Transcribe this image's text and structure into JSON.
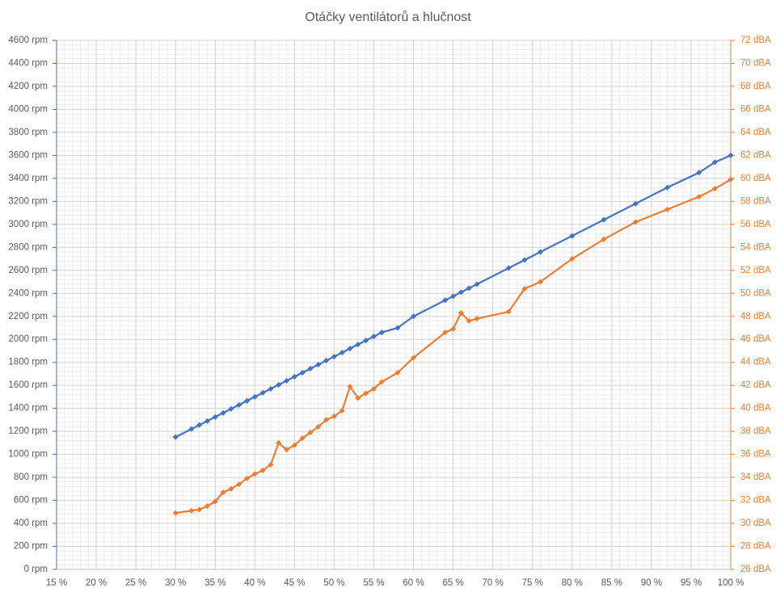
{
  "chart_data": {
    "type": "line",
    "title": "Otáčky ventilátorů a hlučnost",
    "x": [
      30,
      32,
      33,
      34,
      35,
      36,
      37,
      38,
      39,
      40,
      41,
      42,
      43,
      44,
      45,
      46,
      47,
      48,
      49,
      50,
      51,
      52,
      53,
      54,
      55,
      56,
      58,
      60,
      64,
      65,
      66,
      67,
      68,
      72,
      74,
      76,
      80,
      84,
      88,
      92,
      96,
      98,
      100
    ],
    "series": [
      {
        "color": "#4472c4",
        "values": [
          1150,
          1220,
          1255,
          1290,
          1325,
          1360,
          1395,
          1430,
          1465,
          1500,
          1535,
          1570,
          1605,
          1640,
          1675,
          1710,
          1745,
          1780,
          1815,
          1850,
          1885,
          1920,
          1955,
          1990,
          2025,
          2060,
          2100,
          2200,
          2340,
          2375,
          2410,
          2445,
          2480,
          2620,
          2690,
          2760,
          2900,
          3040,
          3180,
          3320,
          3450,
          3540,
          3600
        ]
      },
      {
        "color": "#ed7d31",
        "axis": "y2",
        "values": [
          30.9,
          31.1,
          31.2,
          31.5,
          31.9,
          32.7,
          33.0,
          33.4,
          33.9,
          34.3,
          34.6,
          35.1,
          37.0,
          36.4,
          36.8,
          37.4,
          37.9,
          38.4,
          39.0,
          39.3,
          39.8,
          41.9,
          40.9,
          41.3,
          41.7,
          42.3,
          43.1,
          44.4,
          46.6,
          46.9,
          48.3,
          47.6,
          47.8,
          48.4,
          50.4,
          51.0,
          53.0,
          54.7,
          56.2,
          57.3,
          58.4,
          59.1,
          59.9
        ]
      }
    ],
    "xlim": [
      15,
      100
    ],
    "xticks": [
      {
        "value": 15,
        "label": "15 %"
      },
      {
        "value": 20,
        "label": "20 %"
      },
      {
        "value": 25,
        "label": "25 %"
      },
      {
        "value": 30,
        "label": "30 %"
      },
      {
        "value": 35,
        "label": "35 %"
      },
      {
        "value": 40,
        "label": "40 %"
      },
      {
        "value": 45,
        "label": "45 %"
      },
      {
        "value": 50,
        "label": "50 %"
      },
      {
        "value": 55,
        "label": "55 %"
      },
      {
        "value": 60,
        "label": "60 %"
      },
      {
        "value": 65,
        "label": "65 %"
      },
      {
        "value": 70,
        "label": "70 %"
      },
      {
        "value": 75,
        "label": "75 %"
      },
      {
        "value": 80,
        "label": "80 %"
      },
      {
        "value": 85,
        "label": "85 %"
      },
      {
        "value": 90,
        "label": "90 %"
      },
      {
        "value": 95,
        "label": "95 %"
      },
      {
        "value": 100,
        "label": "100 %"
      }
    ],
    "ylim": [
      0,
      4600
    ],
    "yticks": [
      {
        "value": 0,
        "label": "0 rpm"
      },
      {
        "value": 200,
        "label": "200 rpm"
      },
      {
        "value": 400,
        "label": "400 rpm"
      },
      {
        "value": 600,
        "label": "600 rpm"
      },
      {
        "value": 800,
        "label": "800 rpm"
      },
      {
        "value": 1000,
        "label": "1000 rpm"
      },
      {
        "value": 1200,
        "label": "1200 rpm"
      },
      {
        "value": 1400,
        "label": "1400 rpm"
      },
      {
        "value": 1600,
        "label": "1600 rpm"
      },
      {
        "value": 1800,
        "label": "1800 rpm"
      },
      {
        "value": 2000,
        "label": "2000 rpm"
      },
      {
        "value": 2200,
        "label": "2200 rpm"
      },
      {
        "value": 2400,
        "label": "2400 rpm"
      },
      {
        "value": 2600,
        "label": "2600 rpm"
      },
      {
        "value": 2800,
        "label": "2800 rpm"
      },
      {
        "value": 3000,
        "label": "3000 rpm"
      },
      {
        "value": 3200,
        "label": "3200 rpm"
      },
      {
        "value": 3400,
        "label": "3400 rpm"
      },
      {
        "value": 3600,
        "label": "3600 rpm"
      },
      {
        "value": 3800,
        "label": "3800 rpm"
      },
      {
        "value": 4000,
        "label": "4000 rpm"
      },
      {
        "value": 4200,
        "label": "4200 rpm"
      },
      {
        "value": 4400,
        "label": "4400 rpm"
      },
      {
        "value": 4600,
        "label": "4600 rpm"
      }
    ],
    "y2lim": [
      26,
      72
    ],
    "y2ticks": [
      {
        "value": 26,
        "label": "26 dBA"
      },
      {
        "value": 28,
        "label": "28 dBA"
      },
      {
        "value": 30,
        "label": "30 dBA"
      },
      {
        "value": 32,
        "label": "32 dBA"
      },
      {
        "value": 34,
        "label": "34 dBA"
      },
      {
        "value": 36,
        "label": "36 dBA"
      },
      {
        "value": 38,
        "label": "38 dBA"
      },
      {
        "value": 40,
        "label": "40 dBA"
      },
      {
        "value": 42,
        "label": "42 dBA"
      },
      {
        "value": 44,
        "label": "44 dBA"
      },
      {
        "value": 46,
        "label": "46 dBA"
      },
      {
        "value": 48,
        "label": "48 dBA"
      },
      {
        "value": 50,
        "label": "50 dBA"
      },
      {
        "value": 52,
        "label": "52 dBA"
      },
      {
        "value": 54,
        "label": "54 dBA"
      },
      {
        "value": 56,
        "label": "56 dBA"
      },
      {
        "value": 58,
        "label": "58 dBA"
      },
      {
        "value": 60,
        "label": "60 dBA"
      },
      {
        "value": 62,
        "label": "62 dBA"
      },
      {
        "value": 64,
        "label": "64 dBA"
      },
      {
        "value": 66,
        "label": "66 dBA"
      },
      {
        "value": 68,
        "label": "68 dBA"
      },
      {
        "value": 70,
        "label": "70 dBA"
      },
      {
        "value": 72,
        "label": "72 dBA"
      }
    ],
    "grid": true,
    "minor_grid": true
  }
}
